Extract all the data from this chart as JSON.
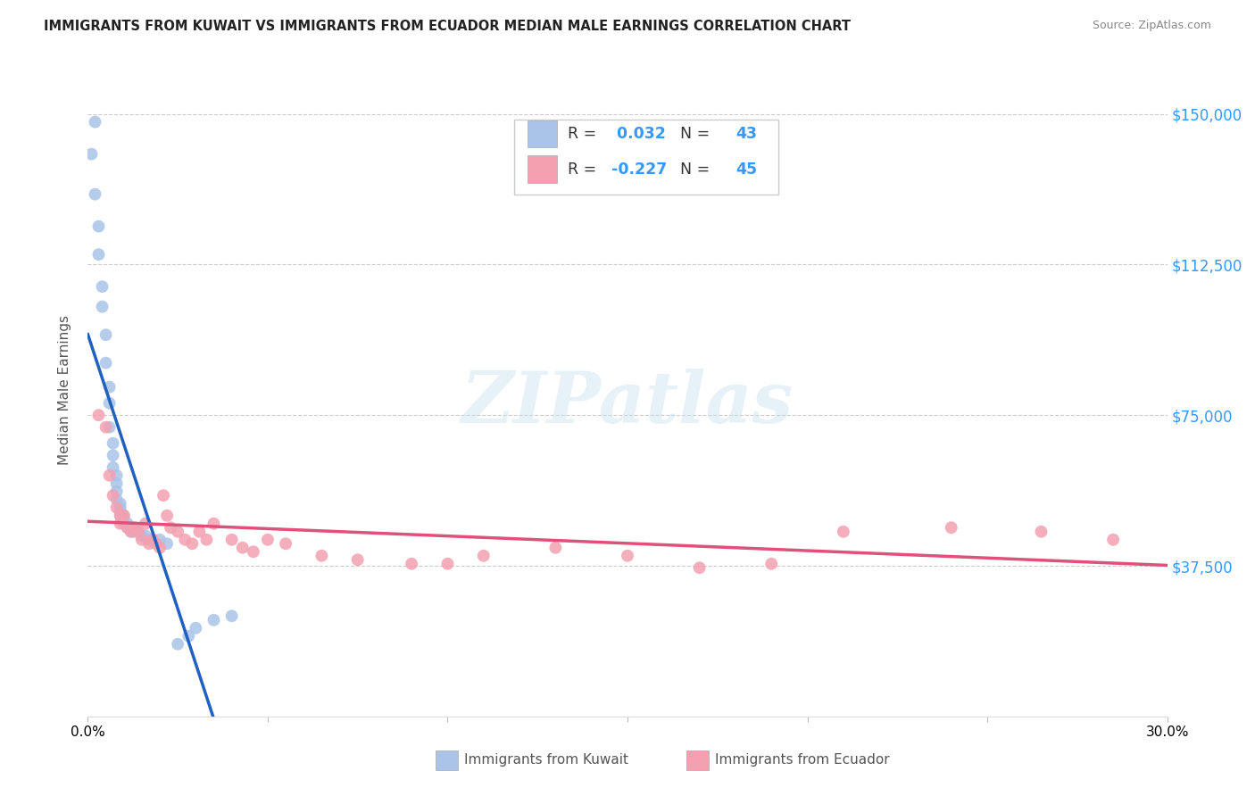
{
  "title": "IMMIGRANTS FROM KUWAIT VS IMMIGRANTS FROM ECUADOR MEDIAN MALE EARNINGS CORRELATION CHART",
  "source": "Source: ZipAtlas.com",
  "ylabel": "Median Male Earnings",
  "xlim": [
    0.0,
    0.3
  ],
  "ylim": [
    0,
    162500
  ],
  "yticks": [
    0,
    37500,
    75000,
    112500,
    150000
  ],
  "ytick_labels": [
    "",
    "$37,500",
    "$75,000",
    "$112,500",
    "$150,000"
  ],
  "xticks": [
    0.0,
    0.05,
    0.1,
    0.15,
    0.2,
    0.25,
    0.3
  ],
  "xtick_labels": [
    "0.0%",
    "",
    "",
    "",
    "",
    "",
    "30.0%"
  ],
  "kuwait_R": 0.032,
  "kuwait_N": 43,
  "ecuador_R": -0.227,
  "ecuador_N": 45,
  "kuwait_color": "#aac4e8",
  "ecuador_color": "#f4a0b0",
  "kuwait_line_color": "#2060c0",
  "ecuador_line_color": "#e0507a",
  "kuwait_dashed_color": "#aac4e8",
  "watermark": "ZIPatlas",
  "background_color": "#ffffff",
  "kuwait_x": [
    0.001,
    0.002,
    0.002,
    0.003,
    0.003,
    0.004,
    0.004,
    0.005,
    0.005,
    0.006,
    0.006,
    0.006,
    0.007,
    0.007,
    0.007,
    0.008,
    0.008,
    0.008,
    0.008,
    0.009,
    0.009,
    0.009,
    0.009,
    0.01,
    0.01,
    0.01,
    0.011,
    0.011,
    0.012,
    0.012,
    0.013,
    0.014,
    0.015,
    0.016,
    0.017,
    0.018,
    0.02,
    0.022,
    0.025,
    0.028,
    0.03,
    0.035,
    0.04
  ],
  "kuwait_y": [
    140000,
    148000,
    130000,
    122000,
    115000,
    107000,
    102000,
    95000,
    88000,
    82000,
    78000,
    72000,
    68000,
    65000,
    62000,
    60000,
    58000,
    56000,
    54000,
    53000,
    52000,
    51000,
    50000,
    50000,
    49000,
    48000,
    48000,
    47000,
    47000,
    46000,
    46000,
    46000,
    45000,
    45000,
    44000,
    44000,
    44000,
    43000,
    18000,
    20000,
    22000,
    24000,
    25000
  ],
  "ecuador_x": [
    0.003,
    0.005,
    0.006,
    0.007,
    0.008,
    0.009,
    0.009,
    0.01,
    0.011,
    0.012,
    0.013,
    0.014,
    0.015,
    0.016,
    0.017,
    0.018,
    0.019,
    0.02,
    0.021,
    0.022,
    0.023,
    0.025,
    0.027,
    0.029,
    0.031,
    0.033,
    0.035,
    0.04,
    0.043,
    0.046,
    0.05,
    0.055,
    0.065,
    0.075,
    0.09,
    0.1,
    0.11,
    0.13,
    0.15,
    0.17,
    0.19,
    0.21,
    0.24,
    0.265,
    0.285
  ],
  "ecuador_y": [
    75000,
    72000,
    60000,
    55000,
    52000,
    50000,
    48000,
    50000,
    47000,
    46000,
    47000,
    46000,
    44000,
    48000,
    43000,
    44000,
    43000,
    42000,
    55000,
    50000,
    47000,
    46000,
    44000,
    43000,
    46000,
    44000,
    48000,
    44000,
    42000,
    41000,
    44000,
    43000,
    40000,
    39000,
    38000,
    38000,
    40000,
    42000,
    40000,
    37000,
    38000,
    46000,
    47000,
    46000,
    44000
  ]
}
